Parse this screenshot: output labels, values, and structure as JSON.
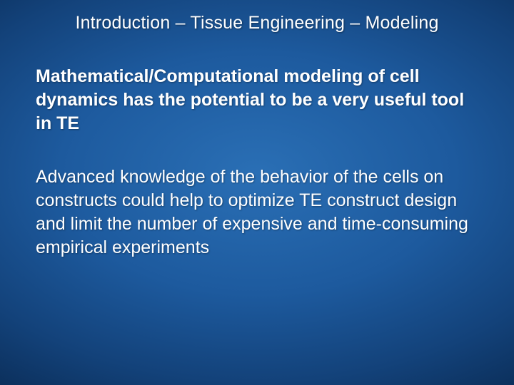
{
  "background": {
    "center_color": "#2a6fb5",
    "edge_color": "#051d3d",
    "type": "radial-gradient"
  },
  "text_color": "#ffffff",
  "title": {
    "text": "Introduction – Tissue Engineering – Modeling",
    "fontsize": 25,
    "font_family": "Verdana",
    "weight": "normal",
    "align": "center"
  },
  "paragraphs": [
    {
      "text": "Mathematical/Computational modeling of cell dynamics has the potential to be a very useful tool in TE",
      "fontsize": 25,
      "font_family": "Verdana",
      "weight": "bold",
      "line_height": 1.32
    },
    {
      "text": "Advanced knowledge of the behavior of the cells on constructs could help to optimize TE construct design and limit the number of expensive and time-consuming empirical experiments",
      "fontsize": 25,
      "font_family": "Verdana",
      "weight": "normal",
      "line_height": 1.32
    }
  ]
}
